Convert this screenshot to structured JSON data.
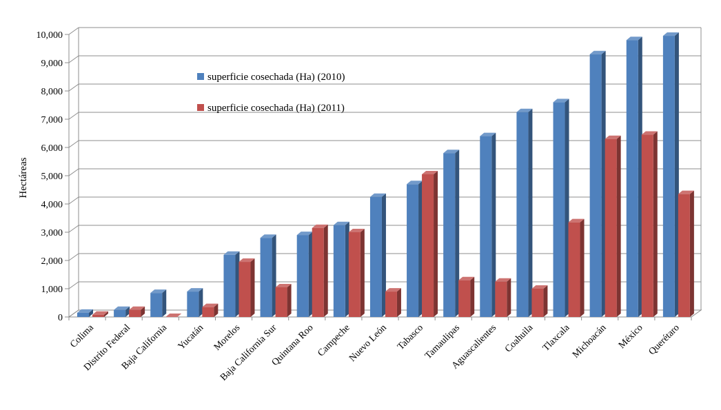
{
  "chart_data": {
    "type": "bar",
    "title": "",
    "xlabel": "",
    "ylabel": "Hectáreas",
    "ylim": [
      0,
      10000
    ],
    "yticks": [
      0,
      1000,
      2000,
      3000,
      4000,
      5000,
      6000,
      7000,
      8000,
      9000,
      10000
    ],
    "ytick_labels": [
      "0",
      "1,000",
      "2,000",
      "3,000",
      "4,000",
      "5,000",
      "6,000",
      "7,000",
      "8,000",
      "9,000",
      "10,000"
    ],
    "grid": true,
    "legend_position": "upper-left",
    "categories": [
      "Colima",
      "Distrito Federal",
      "Baja California",
      "Yucatán",
      "Morelos",
      "Baja California Sur",
      "Quintana Roo",
      "Campeche",
      "Nuevo León",
      "Tabasco",
      "Tamaulipas",
      "Aguascalientes",
      "Coahuila",
      "Tlaxcala",
      "Michoacán",
      "México",
      "Querétaro"
    ],
    "series": [
      {
        "name": "superficie cosechada (Ha) (2010)",
        "color": "#4f81bd",
        "values": [
          150,
          250,
          850,
          900,
          2200,
          2800,
          2900,
          3250,
          4250,
          4700,
          5800,
          6400,
          7250,
          7600,
          9300,
          9800,
          9950
        ]
      },
      {
        "name": "superficie cosechada (Ha) (2011)",
        "color": "#c0504d",
        "values": [
          80,
          250,
          0,
          350,
          1950,
          1050,
          3150,
          3000,
          900,
          5050,
          1300,
          1250,
          1000,
          3350,
          6300,
          6450,
          4350
        ]
      }
    ]
  }
}
